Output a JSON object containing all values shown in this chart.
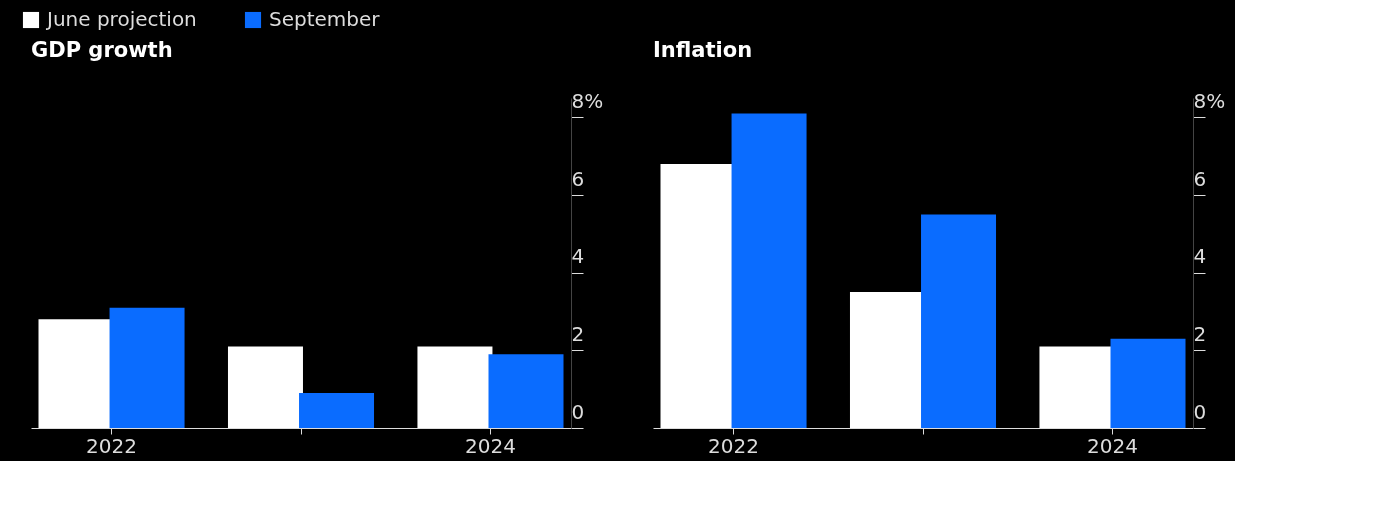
{
  "chart_data": [
    {
      "type": "bar",
      "title": "GDP growth",
      "categories": [
        "2022",
        null,
        "2024"
      ],
      "legend": "top left",
      "series": [
        {
          "name": "June projection",
          "color": "#ffffff",
          "values": [
            2.8,
            2.1,
            2.1
          ]
        },
        {
          "name": "September",
          "color": "#0a6cff",
          "values": [
            3.1,
            0.9,
            1.9
          ]
        }
      ],
      "ylim": [
        0,
        8.5
      ],
      "yticks": [
        0,
        2,
        4,
        6,
        {
          "value": 8,
          "label": "8%"
        }
      ],
      "grid": false
    },
    {
      "type": "bar",
      "title": "Inflation",
      "categories": [
        "2022",
        null,
        "2024"
      ],
      "series": [
        {
          "name": "June projection",
          "color": "#ffffff",
          "values": [
            6.8,
            3.5,
            2.1
          ]
        },
        {
          "name": "September",
          "color": "#0a6cff",
          "values": [
            8.1,
            5.5,
            2.3
          ]
        }
      ],
      "ylim": [
        0,
        8.5
      ],
      "yticks": [
        0,
        2,
        4,
        6,
        {
          "value": 8,
          "label": "8%"
        }
      ],
      "grid": false
    }
  ]
}
